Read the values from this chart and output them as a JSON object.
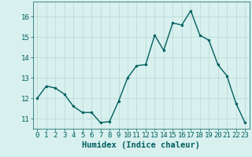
{
  "x": [
    0,
    1,
    2,
    3,
    4,
    5,
    6,
    7,
    8,
    9,
    10,
    11,
    12,
    13,
    14,
    15,
    16,
    17,
    18,
    19,
    20,
    21,
    22,
    23
  ],
  "y": [
    12.0,
    12.6,
    12.5,
    12.2,
    11.6,
    11.3,
    11.3,
    10.8,
    10.85,
    11.85,
    13.0,
    13.6,
    13.65,
    15.1,
    14.35,
    15.7,
    15.6,
    16.3,
    15.1,
    14.85,
    13.65,
    13.1,
    11.75,
    10.8
  ],
  "line_color": "#006060",
  "marker": "o",
  "marker_size": 2.0,
  "bg_color": "#d8f0ee",
  "grid_color": "#b8d8d4",
  "xlabel": "Humidex (Indice chaleur)",
  "ylim": [
    10.5,
    16.75
  ],
  "xlim": [
    -0.5,
    23.5
  ],
  "yticks": [
    11,
    12,
    13,
    14,
    15,
    16
  ],
  "xticks": [
    0,
    1,
    2,
    3,
    4,
    5,
    6,
    7,
    8,
    9,
    10,
    11,
    12,
    13,
    14,
    15,
    16,
    17,
    18,
    19,
    20,
    21,
    22,
    23
  ],
  "tick_label_size": 6.5,
  "xlabel_fontsize": 7.5,
  "tick_color": "#006060",
  "label_color": "#006060",
  "line_width": 1.0,
  "spine_color": "#006060"
}
